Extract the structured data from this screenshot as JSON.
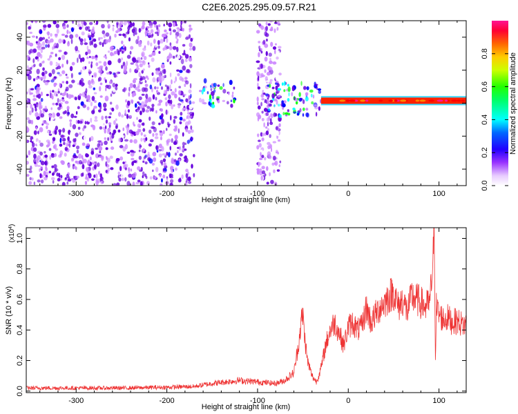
{
  "title": "C2E6.2025.295.09.57.R21",
  "chart_data": [
    {
      "type": "heatmap",
      "name": "spectrogram",
      "xlabel": "Height of straight line (km)",
      "ylabel": "Frequency (Hz)",
      "xlim": [
        -355,
        130
      ],
      "ylim": [
        -50,
        50
      ],
      "xticks": [
        -300,
        -200,
        -100,
        0,
        100
      ],
      "yticks": [
        -40,
        -20,
        0,
        20,
        40
      ],
      "colorbar": {
        "label": "Normalized spectral amplitude",
        "range": [
          0,
          1
        ],
        "ticks": [
          0.0,
          0.2,
          0.4,
          0.6,
          0.8
        ],
        "colors": [
          "#ffffff",
          "#cc88ff",
          "#6600dd",
          "#0000ff",
          "#00ffff",
          "#00ff00",
          "#ffff00",
          "#ff8800",
          "#ff0000",
          "#ff1493"
        ]
      },
      "regions": [
        {
          "x": [
            -355,
            -170
          ],
          "freq": [
            -50,
            50
          ],
          "amplitude": 0.15,
          "description_level": "scattered noise"
        },
        {
          "x": [
            -165,
            -125
          ],
          "freq": [
            -2,
            14
          ],
          "amplitude": 0.3
        },
        {
          "x": [
            -100,
            -75
          ],
          "freq": [
            -50,
            50
          ],
          "amplitude": 0.12
        },
        {
          "x": [
            -90,
            -30
          ],
          "freq": [
            -8,
            12
          ],
          "amplitude": 0.3
        },
        {
          "x": [
            -30,
            130
          ],
          "freq": [
            0,
            3
          ],
          "amplitude": 0.9
        }
      ]
    },
    {
      "type": "line",
      "name": "snr",
      "xlabel": "Height of straight line (km)",
      "ylabel": "SNR (10 * v/v)",
      "y_multiplier": "(x10",
      "y_multiplier_exp": "4",
      "y_multiplier_close": ")",
      "xlim": [
        -355,
        130
      ],
      "ylim": [
        -0.01,
        1.07
      ],
      "xticks": [
        -300,
        -200,
        -100,
        0,
        100
      ],
      "yticks": [
        0.0,
        0.2,
        0.4,
        0.6,
        0.8,
        1.0
      ],
      "color": "#ee3333",
      "series": {
        "name": "SNR",
        "x": [
          -355,
          -300,
          -250,
          -200,
          -170,
          -150,
          -120,
          -100,
          -80,
          -70,
          -60,
          -55,
          -52,
          -50,
          -48,
          -45,
          -40,
          -35,
          -30,
          -25,
          -20,
          -15,
          -10,
          -5,
          0,
          5,
          10,
          15,
          20,
          25,
          30,
          35,
          40,
          45,
          50,
          55,
          60,
          65,
          70,
          75,
          80,
          85,
          90,
          94,
          95,
          96,
          97,
          100,
          105,
          110,
          115,
          120,
          125,
          130
        ],
        "values": [
          0.02,
          0.02,
          0.02,
          0.025,
          0.03,
          0.05,
          0.07,
          0.06,
          0.05,
          0.07,
          0.12,
          0.3,
          0.45,
          0.5,
          0.35,
          0.2,
          0.1,
          0.06,
          0.15,
          0.3,
          0.4,
          0.45,
          0.38,
          0.3,
          0.42,
          0.45,
          0.4,
          0.42,
          0.55,
          0.45,
          0.5,
          0.55,
          0.58,
          0.62,
          0.65,
          0.55,
          0.6,
          0.52,
          0.62,
          0.6,
          0.58,
          0.55,
          0.58,
          0.9,
          1.05,
          0.2,
          0.55,
          0.5,
          0.47,
          0.48,
          0.45,
          0.46,
          0.44,
          0.43
        ]
      }
    }
  ]
}
